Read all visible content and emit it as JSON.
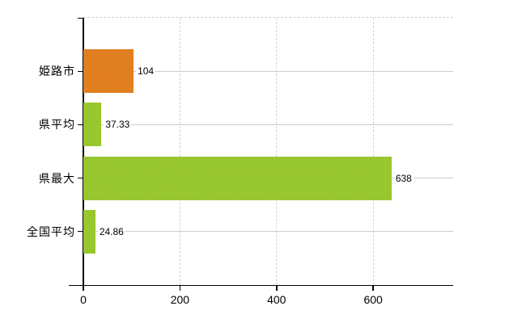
{
  "chart_data": {
    "type": "bar",
    "orientation": "horizontal",
    "title": "",
    "xlabel": "",
    "ylabel": "",
    "categories": [
      "姫路市",
      "県平均",
      "県最大",
      "全国平均"
    ],
    "values": [
      104,
      37.33,
      638,
      24.86
    ],
    "value_labels": [
      "104",
      "37.33",
      "638",
      "24.86"
    ],
    "bar_color_names": [
      "highlight",
      "normal",
      "normal",
      "normal"
    ],
    "x_ticks": [
      0,
      200,
      400,
      600
    ],
    "x_tick_labels": [
      "0",
      "200",
      "400",
      "600"
    ],
    "xlim": [
      0,
      765.6
    ],
    "grid": "dashed vertical lines at x ticks, solid horizontal line through each bar center, dashed top border",
    "legend": "none"
  },
  "colors": {
    "highlight_bar": "#e0811f",
    "normal_bar": "#9cc72e",
    "axis": "#000000",
    "grid_vertical": "#d2d2d2",
    "grid_horizontal": "#c6d2c2",
    "text": "#000000",
    "background": "#ffffff"
  }
}
